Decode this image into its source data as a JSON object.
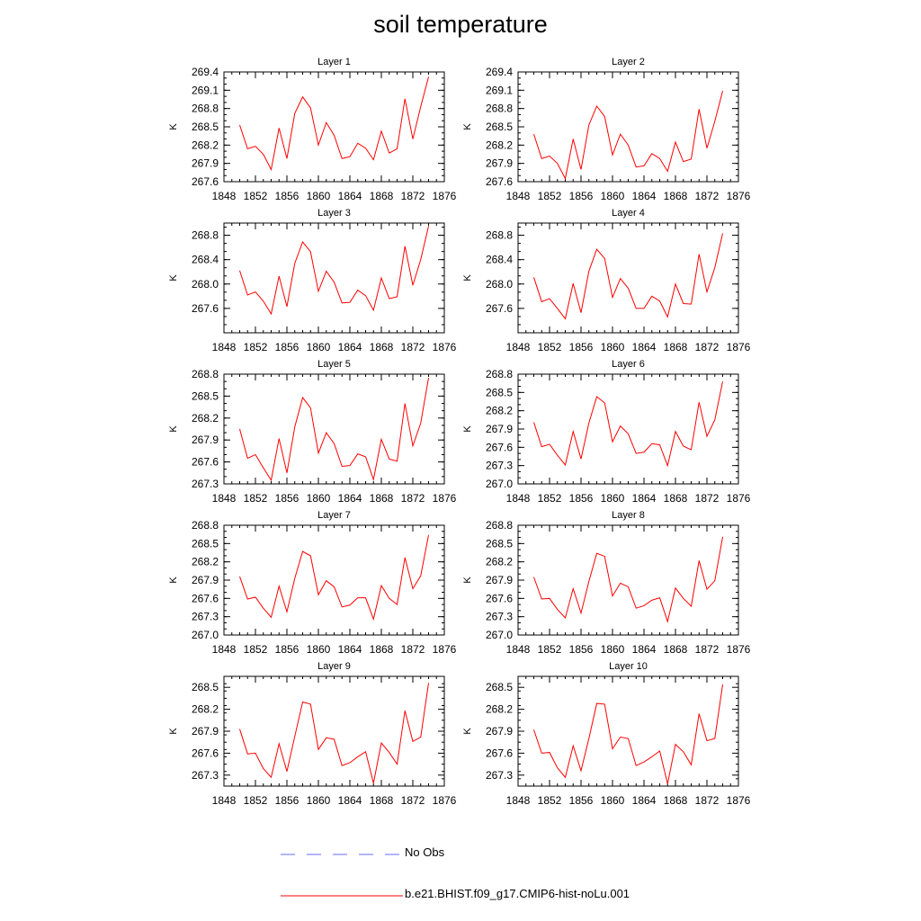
{
  "title": "soil temperature",
  "legend": {
    "obs_label": "No Obs",
    "model_label": "b.e21.BHIST.f09_g17.CMIP6-hist-noLu.001",
    "obs_color": "#6a6aff",
    "model_color": "#ff0000"
  },
  "chart_data": [
    {
      "type": "line",
      "title": "Layer 1",
      "xlabel": "",
      "ylabel": "K",
      "xlim": [
        1848,
        1876
      ],
      "ylim": [
        267.6,
        269.4
      ],
      "xticks": [
        "1848",
        "1852",
        "1856",
        "1860",
        "1864",
        "1868",
        "1872",
        "1876"
      ],
      "yticks": [
        "267.6",
        "267.9",
        "268.2",
        "268.5",
        "268.8",
        "269.1",
        "269.4"
      ],
      "x": [
        1850,
        1851,
        1852,
        1853,
        1854,
        1855,
        1856,
        1857,
        1858,
        1859,
        1860,
        1861,
        1862,
        1863,
        1864,
        1865,
        1866,
        1867,
        1868,
        1869,
        1870,
        1871,
        1872,
        1873,
        1874
      ],
      "series": [
        {
          "values": [
            268.53,
            268.14,
            268.18,
            268.05,
            267.8,
            268.48,
            267.98,
            268.72,
            268.99,
            268.81,
            268.2,
            268.57,
            268.36,
            267.98,
            268.01,
            268.23,
            268.15,
            267.96,
            268.43,
            268.07,
            268.14,
            268.96,
            268.3,
            268.83,
            269.32
          ]
        }
      ]
    },
    {
      "type": "line",
      "title": "Layer 2",
      "xlabel": "",
      "ylabel": "K",
      "xlim": [
        1848,
        1876
      ],
      "ylim": [
        267.6,
        269.4
      ],
      "xticks": [
        "1848",
        "1852",
        "1856",
        "1860",
        "1864",
        "1868",
        "1872",
        "1876"
      ],
      "yticks": [
        "267.6",
        "267.9",
        "268.2",
        "268.5",
        "268.8",
        "269.1",
        "269.4"
      ],
      "x": [
        1850,
        1851,
        1852,
        1853,
        1854,
        1855,
        1856,
        1857,
        1858,
        1859,
        1860,
        1861,
        1862,
        1863,
        1864,
        1865,
        1866,
        1867,
        1868,
        1869,
        1870,
        1871,
        1872,
        1873,
        1874
      ],
      "series": [
        {
          "values": [
            268.38,
            267.98,
            268.02,
            267.9,
            267.65,
            268.3,
            267.8,
            268.53,
            268.84,
            268.67,
            268.04,
            268.38,
            268.2,
            267.84,
            267.86,
            268.06,
            267.98,
            267.77,
            268.25,
            267.93,
            267.97,
            268.79,
            268.15,
            268.59,
            269.09
          ]
        }
      ]
    },
    {
      "type": "line",
      "title": "Layer 3",
      "xlabel": "",
      "ylabel": "K",
      "xlim": [
        1848,
        1876
      ],
      "ylim": [
        267.2,
        269.0
      ],
      "xticks": [
        "1848",
        "1852",
        "1856",
        "1860",
        "1864",
        "1868",
        "1872",
        "1876"
      ],
      "yticks": [
        "267.6",
        "268.0",
        "268.4",
        "268.8"
      ],
      "x": [
        1850,
        1851,
        1852,
        1853,
        1854,
        1855,
        1856,
        1857,
        1858,
        1859,
        1860,
        1861,
        1862,
        1863,
        1864,
        1865,
        1866,
        1867,
        1868,
        1869,
        1870,
        1871,
        1872,
        1873,
        1874
      ],
      "series": [
        {
          "values": [
            268.22,
            267.82,
            267.87,
            267.72,
            267.51,
            268.13,
            267.63,
            268.34,
            268.69,
            268.53,
            267.88,
            268.21,
            268.03,
            267.69,
            267.7,
            267.9,
            267.81,
            267.57,
            268.1,
            267.76,
            267.79,
            268.62,
            267.98,
            268.4,
            268.95
          ]
        }
      ]
    },
    {
      "type": "line",
      "title": "Layer 4",
      "xlabel": "",
      "ylabel": "K",
      "xlim": [
        1848,
        1876
      ],
      "ylim": [
        267.2,
        269.0
      ],
      "xticks": [
        "1848",
        "1852",
        "1856",
        "1860",
        "1864",
        "1868",
        "1872",
        "1876"
      ],
      "yticks": [
        "267.6",
        "268.0",
        "268.4",
        "268.8"
      ],
      "x": [
        1850,
        1851,
        1852,
        1853,
        1854,
        1855,
        1856,
        1857,
        1858,
        1859,
        1860,
        1861,
        1862,
        1863,
        1864,
        1865,
        1866,
        1867,
        1868,
        1869,
        1870,
        1871,
        1872,
        1873,
        1874
      ],
      "series": [
        {
          "values": [
            268.11,
            267.71,
            267.76,
            267.6,
            267.43,
            268.01,
            267.53,
            268.21,
            268.57,
            268.42,
            267.78,
            268.09,
            267.93,
            267.6,
            267.6,
            267.8,
            267.72,
            267.46,
            268.0,
            267.68,
            267.67,
            268.49,
            267.87,
            268.27,
            268.83
          ]
        }
      ]
    },
    {
      "type": "line",
      "title": "Layer 5",
      "xlabel": "",
      "ylabel": "K",
      "xlim": [
        1848,
        1876
      ],
      "ylim": [
        267.3,
        268.8
      ],
      "xticks": [
        "1848",
        "1852",
        "1856",
        "1860",
        "1864",
        "1868",
        "1872",
        "1876"
      ],
      "yticks": [
        "267.3",
        "267.6",
        "267.9",
        "268.2",
        "268.5",
        "268.8"
      ],
      "x": [
        1850,
        1851,
        1852,
        1853,
        1854,
        1855,
        1856,
        1857,
        1858,
        1859,
        1860,
        1861,
        1862,
        1863,
        1864,
        1865,
        1866,
        1867,
        1868,
        1869,
        1870,
        1871,
        1872,
        1873,
        1874
      ],
      "series": [
        {
          "values": [
            268.05,
            267.65,
            267.7,
            267.52,
            267.35,
            267.92,
            267.45,
            268.08,
            268.48,
            268.34,
            267.72,
            268.0,
            267.85,
            267.54,
            267.55,
            267.71,
            267.67,
            267.36,
            267.91,
            267.64,
            267.61,
            268.4,
            267.82,
            268.13,
            268.75
          ]
        }
      ]
    },
    {
      "type": "line",
      "title": "Layer 6",
      "xlabel": "",
      "ylabel": "K",
      "xlim": [
        1848,
        1876
      ],
      "ylim": [
        267.0,
        268.8
      ],
      "xticks": [
        "1848",
        "1852",
        "1856",
        "1860",
        "1864",
        "1868",
        "1872",
        "1876"
      ],
      "yticks": [
        "267.0",
        "267.3",
        "267.6",
        "267.9",
        "268.2",
        "268.5",
        "268.8"
      ],
      "x": [
        1850,
        1851,
        1852,
        1853,
        1854,
        1855,
        1856,
        1857,
        1858,
        1859,
        1860,
        1861,
        1862,
        1863,
        1864,
        1865,
        1866,
        1867,
        1868,
        1869,
        1870,
        1871,
        1872,
        1873,
        1874
      ],
      "series": [
        {
          "values": [
            268.01,
            267.61,
            267.65,
            267.47,
            267.31,
            267.86,
            267.41,
            268.0,
            268.43,
            268.33,
            267.69,
            267.95,
            267.82,
            267.5,
            267.52,
            267.66,
            267.64,
            267.3,
            267.86,
            267.62,
            267.56,
            268.34,
            267.78,
            268.05,
            268.68
          ]
        }
      ]
    },
    {
      "type": "line",
      "title": "Layer 7",
      "xlabel": "",
      "ylabel": "K",
      "xlim": [
        1848,
        1876
      ],
      "ylim": [
        267.0,
        268.8
      ],
      "xticks": [
        "1848",
        "1852",
        "1856",
        "1860",
        "1864",
        "1868",
        "1872",
        "1876"
      ],
      "yticks": [
        "267.0",
        "267.3",
        "267.6",
        "267.9",
        "268.2",
        "268.5",
        "268.8"
      ],
      "x": [
        1850,
        1851,
        1852,
        1853,
        1854,
        1855,
        1856,
        1857,
        1858,
        1859,
        1860,
        1861,
        1862,
        1863,
        1864,
        1865,
        1866,
        1867,
        1868,
        1869,
        1870,
        1871,
        1872,
        1873,
        1874
      ],
      "series": [
        {
          "values": [
            267.96,
            267.59,
            267.62,
            267.44,
            267.29,
            267.8,
            267.38,
            267.93,
            268.37,
            268.3,
            267.66,
            267.89,
            267.79,
            267.46,
            267.49,
            267.61,
            267.61,
            267.26,
            267.81,
            267.6,
            267.5,
            268.27,
            267.76,
            267.97,
            268.64
          ]
        }
      ]
    },
    {
      "type": "line",
      "title": "Layer 8",
      "xlabel": "",
      "ylabel": "K",
      "xlim": [
        1848,
        1876
      ],
      "ylim": [
        267.0,
        268.8
      ],
      "xticks": [
        "1848",
        "1852",
        "1856",
        "1860",
        "1864",
        "1868",
        "1872",
        "1876"
      ],
      "yticks": [
        "267.0",
        "267.3",
        "267.6",
        "267.9",
        "268.2",
        "268.5",
        "268.8"
      ],
      "x": [
        1850,
        1851,
        1852,
        1853,
        1854,
        1855,
        1856,
        1857,
        1858,
        1859,
        1860,
        1861,
        1862,
        1863,
        1864,
        1865,
        1866,
        1867,
        1868,
        1869,
        1870,
        1871,
        1872,
        1873,
        1874
      ],
      "series": [
        {
          "values": [
            267.95,
            267.59,
            267.6,
            267.42,
            267.28,
            267.76,
            267.36,
            267.88,
            268.34,
            268.29,
            267.64,
            267.85,
            267.79,
            267.44,
            267.48,
            267.57,
            267.61,
            267.22,
            267.77,
            267.6,
            267.47,
            268.22,
            267.75,
            267.89,
            268.61
          ]
        }
      ]
    },
    {
      "type": "line",
      "title": "Layer 9",
      "xlabel": "",
      "ylabel": "K",
      "xlim": [
        1848,
        1876
      ],
      "ylim": [
        267.15,
        268.65
      ],
      "xticks": [
        "1848",
        "1852",
        "1856",
        "1860",
        "1864",
        "1868",
        "1872",
        "1876"
      ],
      "yticks": [
        "267.3",
        "267.6",
        "267.9",
        "268.2",
        "268.5"
      ],
      "x": [
        1850,
        1851,
        1852,
        1853,
        1854,
        1855,
        1856,
        1857,
        1858,
        1859,
        1860,
        1861,
        1862,
        1863,
        1864,
        1865,
        1866,
        1867,
        1868,
        1869,
        1870,
        1871,
        1872,
        1873,
        1874
      ],
      "series": [
        {
          "values": [
            267.93,
            267.59,
            267.6,
            267.39,
            267.27,
            267.73,
            267.35,
            267.83,
            268.3,
            268.27,
            267.65,
            267.81,
            267.79,
            267.43,
            267.47,
            267.55,
            267.62,
            267.19,
            267.74,
            267.61,
            267.45,
            268.18,
            267.76,
            267.82,
            268.56
          ]
        }
      ]
    },
    {
      "type": "line",
      "title": "Layer 10",
      "xlabel": "",
      "ylabel": "K",
      "xlim": [
        1848,
        1876
      ],
      "ylim": [
        267.15,
        268.65
      ],
      "xticks": [
        "1848",
        "1852",
        "1856",
        "1860",
        "1864",
        "1868",
        "1872",
        "1876"
      ],
      "yticks": [
        "267.3",
        "267.6",
        "267.9",
        "268.2",
        "268.5"
      ],
      "x": [
        1850,
        1851,
        1852,
        1853,
        1854,
        1855,
        1856,
        1857,
        1858,
        1859,
        1860,
        1861,
        1862,
        1863,
        1864,
        1865,
        1866,
        1867,
        1868,
        1869,
        1870,
        1871,
        1872,
        1873,
        1874
      ],
      "series": [
        {
          "values": [
            267.92,
            267.6,
            267.61,
            267.4,
            267.27,
            267.7,
            267.36,
            267.8,
            268.28,
            268.27,
            267.66,
            267.82,
            267.8,
            267.43,
            267.48,
            267.55,
            267.63,
            267.18,
            267.72,
            267.62,
            267.44,
            268.14,
            267.77,
            267.8,
            268.54
          ]
        }
      ]
    }
  ]
}
